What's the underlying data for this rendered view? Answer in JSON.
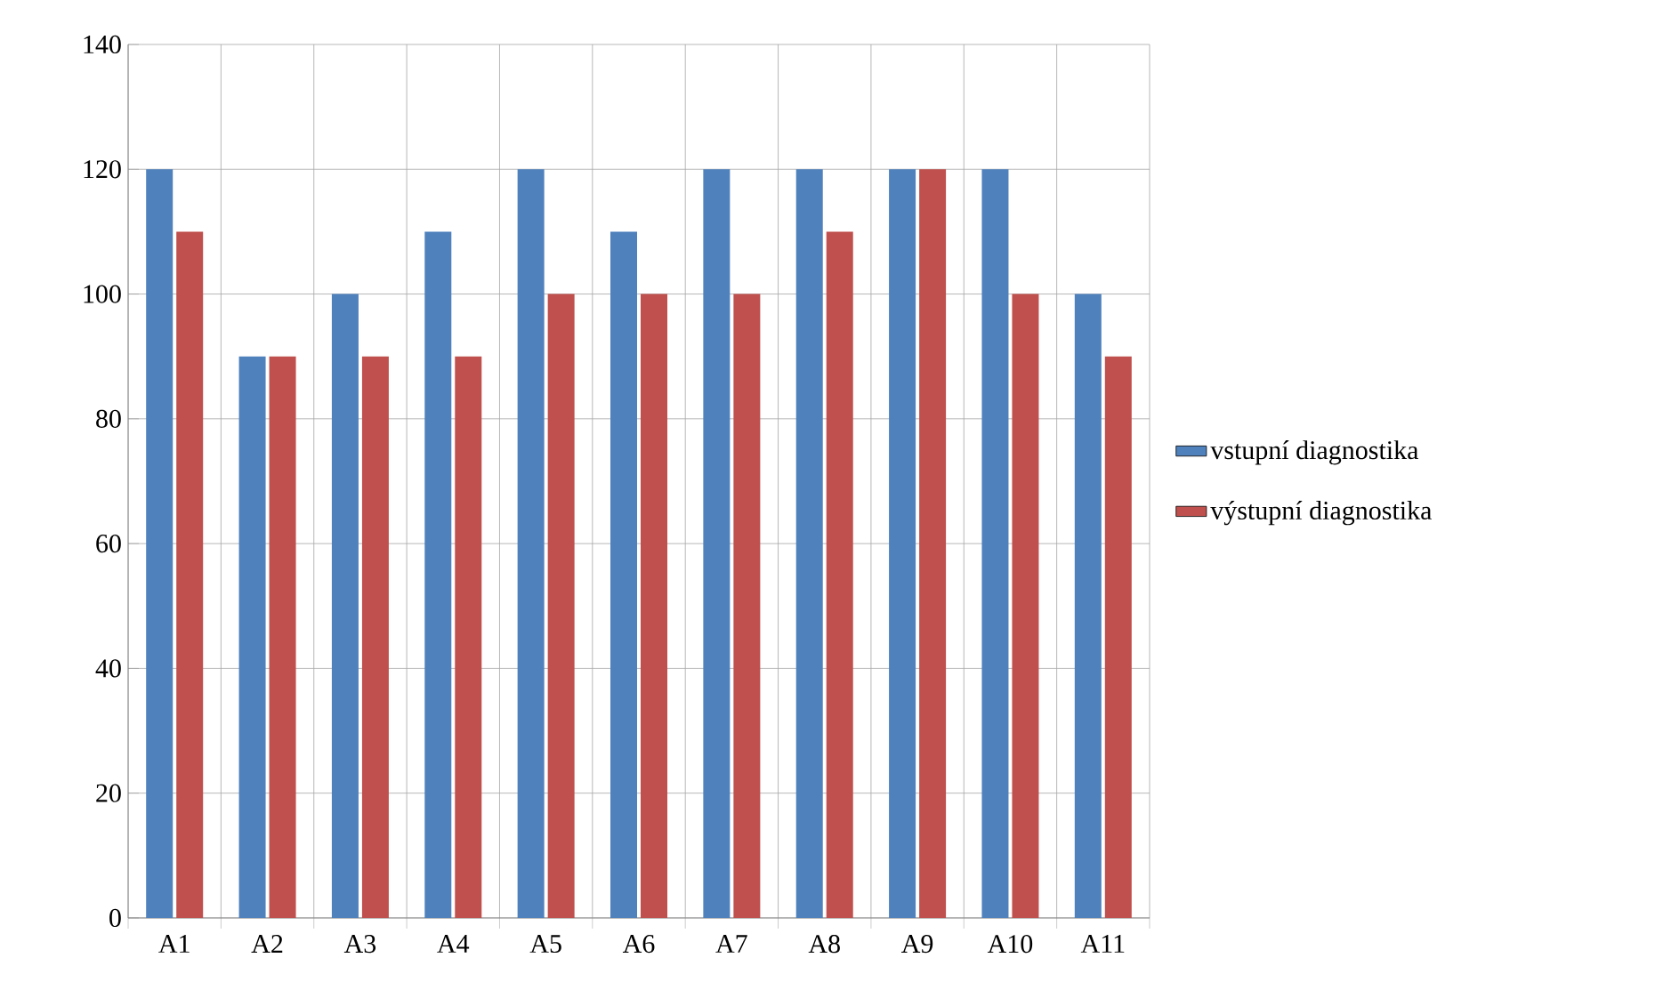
{
  "chart_data": {
    "type": "bar",
    "categories": [
      "A1",
      "A2",
      "A3",
      "A4",
      "A5",
      "A6",
      "A7",
      "A8",
      "A9",
      "A10",
      "A11"
    ],
    "series": [
      {
        "name": "vstupní diagnostika",
        "color": "#4f81bd",
        "values": [
          120,
          90,
          100,
          110,
          120,
          110,
          120,
          120,
          120,
          120,
          100
        ]
      },
      {
        "name": "výstupní diagnostika",
        "color": "#c0504d",
        "values": [
          110,
          90,
          90,
          90,
          100,
          100,
          100,
          110,
          120,
          100,
          90
        ]
      }
    ],
    "ylim": [
      0,
      140
    ],
    "yticks": [
      0,
      20,
      40,
      60,
      80,
      100,
      120,
      140
    ],
    "grid": true,
    "legend": "right"
  }
}
